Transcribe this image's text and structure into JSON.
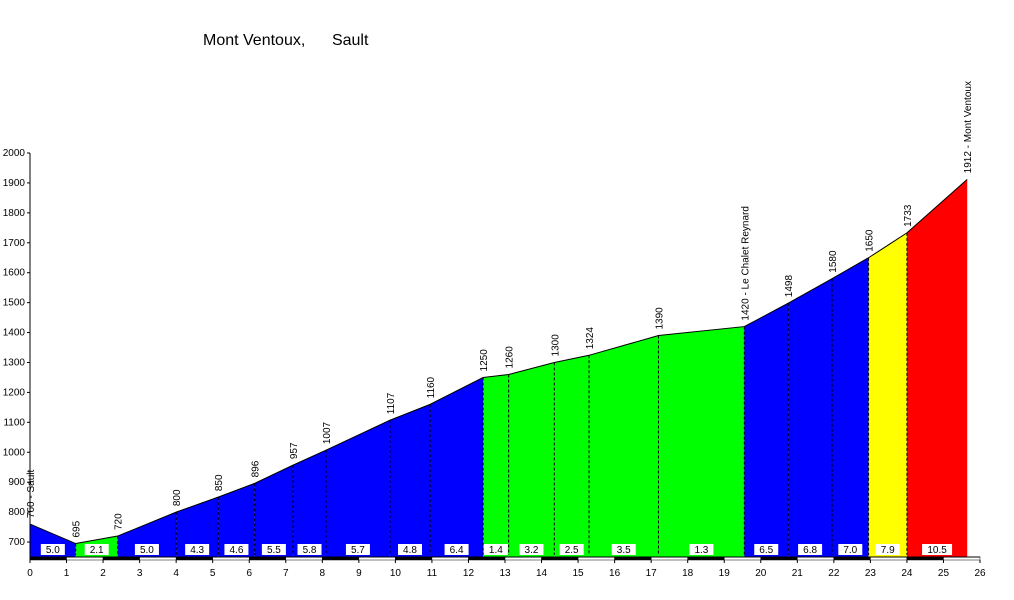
{
  "chart_data": {
    "type": "area",
    "title": "Mont Ventoux,      Sault",
    "xlabel": "",
    "ylabel": "",
    "xlim": [
      0,
      26
    ],
    "ylim": [
      650,
      2000
    ],
    "x_ticks": [
      0,
      1,
      2,
      3,
      4,
      5,
      6,
      7,
      8,
      9,
      10,
      11,
      12,
      13,
      14,
      15,
      16,
      17,
      18,
      19,
      20,
      21,
      22,
      23,
      24,
      25,
      26
    ],
    "y_ticks": [
      700,
      800,
      900,
      1000,
      1100,
      1200,
      1300,
      1400,
      1500,
      1600,
      1700,
      1800,
      1900,
      2000
    ],
    "points": [
      {
        "x": 0.0,
        "y": 760,
        "label": "760 - Sault"
      },
      {
        "x": 1.25,
        "y": 695,
        "label": "695"
      },
      {
        "x": 2.4,
        "y": 720,
        "label": "720"
      },
      {
        "x": 4.0,
        "y": 800,
        "label": "800"
      },
      {
        "x": 5.15,
        "y": 850,
        "label": "850"
      },
      {
        "x": 6.15,
        "y": 896,
        "label": "896"
      },
      {
        "x": 7.2,
        "y": 957,
        "label": "957"
      },
      {
        "x": 8.1,
        "y": 1007,
        "label": "1007"
      },
      {
        "x": 9.85,
        "y": 1107,
        "label": "1107"
      },
      {
        "x": 10.95,
        "y": 1160,
        "label": "1160"
      },
      {
        "x": 12.4,
        "y": 1250,
        "label": "1250"
      },
      {
        "x": 13.1,
        "y": 1260,
        "label": "1260"
      },
      {
        "x": 14.35,
        "y": 1300,
        "label": "1300"
      },
      {
        "x": 15.3,
        "y": 1324,
        "label": "1324"
      },
      {
        "x": 17.2,
        "y": 1390,
        "label": "1390"
      },
      {
        "x": 19.55,
        "y": 1420,
        "label": "1420 - Le Chalet Reynard"
      },
      {
        "x": 20.75,
        "y": 1498,
        "label": "1498"
      },
      {
        "x": 21.95,
        "y": 1580,
        "label": "1580"
      },
      {
        "x": 22.95,
        "y": 1650,
        "label": "1650"
      },
      {
        "x": 24.0,
        "y": 1733,
        "label": "1733"
      },
      {
        "x": 25.65,
        "y": 1912,
        "label": "1912 - Mont Ventoux"
      }
    ],
    "segments": [
      {
        "from": 0,
        "to": 1,
        "gradient": "5.0",
        "color": "#0000ff"
      },
      {
        "from": 1,
        "to": 2,
        "gradient": "2.1",
        "color": "#00ff00"
      },
      {
        "from": 2,
        "to": 3,
        "gradient": "5.0",
        "color": "#0000ff"
      },
      {
        "from": 3,
        "to": 4,
        "gradient": "4.3",
        "color": "#0000ff"
      },
      {
        "from": 4,
        "to": 5,
        "gradient": "4.6",
        "color": "#0000ff"
      },
      {
        "from": 5,
        "to": 6,
        "gradient": "5.5",
        "color": "#0000ff"
      },
      {
        "from": 6,
        "to": 7,
        "gradient": "5.8",
        "color": "#0000ff"
      },
      {
        "from": 7,
        "to": 8,
        "gradient": "5.7",
        "color": "#0000ff"
      },
      {
        "from": 8,
        "to": 9,
        "gradient": "4.8",
        "color": "#0000ff"
      },
      {
        "from": 9,
        "to": 10,
        "gradient": "6.4",
        "color": "#0000ff"
      },
      {
        "from": 10,
        "to": 11,
        "gradient": "1.4",
        "color": "#00ff00"
      },
      {
        "from": 11,
        "to": 12,
        "gradient": "3.2",
        "color": "#00ff00"
      },
      {
        "from": 12,
        "to": 13,
        "gradient": "2.5",
        "color": "#00ff00"
      },
      {
        "from": 13,
        "to": 14,
        "gradient": "3.5",
        "color": "#00ff00"
      },
      {
        "from": 14,
        "to": 15,
        "gradient": "1.3",
        "color": "#00ff00"
      },
      {
        "from": 15,
        "to": 16,
        "gradient": "6.5",
        "color": "#0000ff"
      },
      {
        "from": 16,
        "to": 17,
        "gradient": "6.8",
        "color": "#0000ff"
      },
      {
        "from": 17,
        "to": 18,
        "gradient": "7.0",
        "color": "#0000ff"
      },
      {
        "from": 18,
        "to": 19,
        "gradient": "7.9",
        "color": "#ffff00"
      },
      {
        "from": 19,
        "to": 20,
        "gradient": "10.5",
        "color": "#ff0000"
      }
    ],
    "grid": false,
    "legend": "none"
  }
}
